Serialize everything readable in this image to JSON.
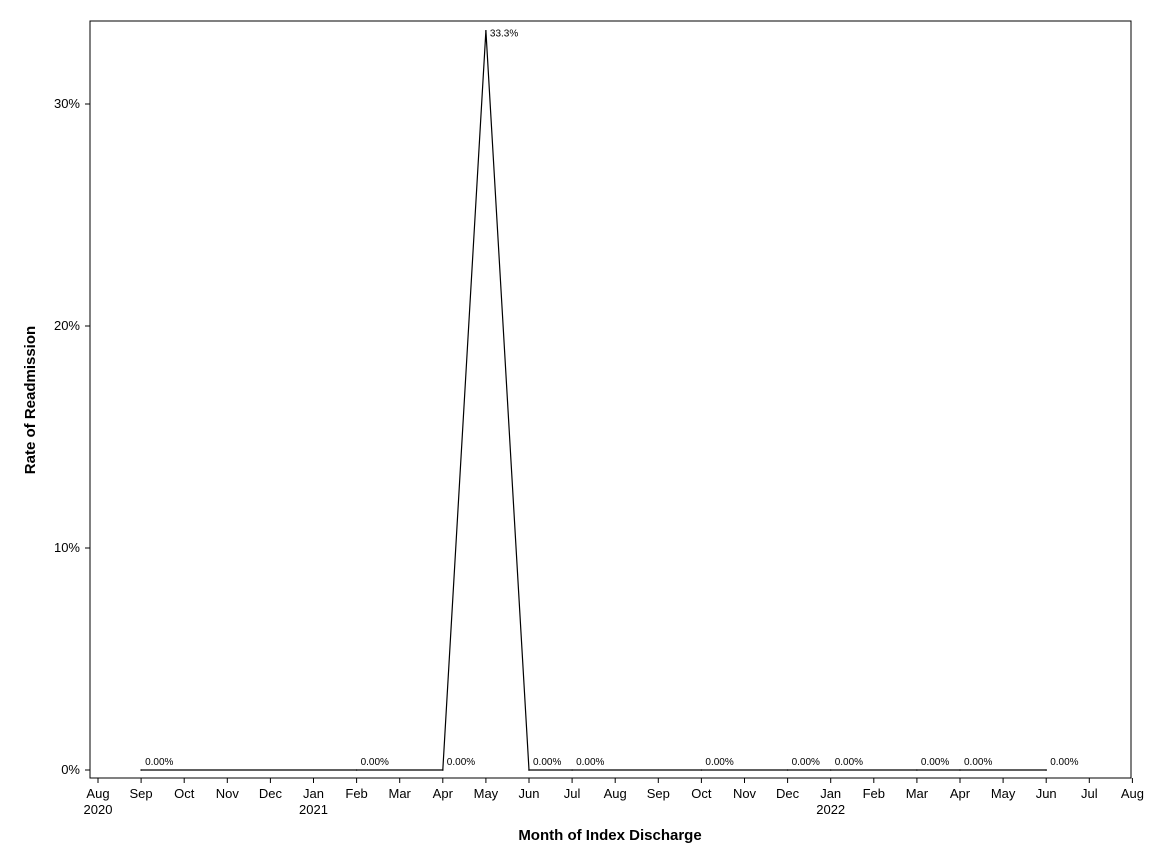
{
  "chart_data": {
    "type": "line",
    "title": "",
    "xlabel": "Month of Index Discharge",
    "ylabel": "Rate of Readmission",
    "ylim": [
      0,
      0.333
    ],
    "y_ticks": [
      {
        "value": 0,
        "label": "0%"
      },
      {
        "value": 0.1,
        "label": "10%"
      },
      {
        "value": 0.2,
        "label": "20%"
      },
      {
        "value": 0.3,
        "label": "30%"
      }
    ],
    "x_axis_months": [
      {
        "date": "2020-08",
        "label": "Aug",
        "year": "2020"
      },
      {
        "date": "2020-09",
        "label": "Sep",
        "year": ""
      },
      {
        "date": "2020-10",
        "label": "Oct",
        "year": ""
      },
      {
        "date": "2020-11",
        "label": "Nov",
        "year": ""
      },
      {
        "date": "2020-12",
        "label": "Dec",
        "year": ""
      },
      {
        "date": "2021-01",
        "label": "Jan",
        "year": "2021"
      },
      {
        "date": "2021-02",
        "label": "Feb",
        "year": ""
      },
      {
        "date": "2021-03",
        "label": "Mar",
        "year": ""
      },
      {
        "date": "2021-04",
        "label": "Apr",
        "year": ""
      },
      {
        "date": "2021-05",
        "label": "May",
        "year": ""
      },
      {
        "date": "2021-06",
        "label": "Jun",
        "year": ""
      },
      {
        "date": "2021-07",
        "label": "Jul",
        "year": ""
      },
      {
        "date": "2021-08",
        "label": "Aug",
        "year": ""
      },
      {
        "date": "2021-09",
        "label": "Sep",
        "year": ""
      },
      {
        "date": "2021-10",
        "label": "Oct",
        "year": ""
      },
      {
        "date": "2021-11",
        "label": "Nov",
        "year": ""
      },
      {
        "date": "2021-12",
        "label": "Dec",
        "year": ""
      },
      {
        "date": "2022-01",
        "label": "Jan",
        "year": "2022"
      },
      {
        "date": "2022-02",
        "label": "Feb",
        "year": ""
      },
      {
        "date": "2022-03",
        "label": "Mar",
        "year": ""
      },
      {
        "date": "2022-04",
        "label": "Apr",
        "year": ""
      },
      {
        "date": "2022-05",
        "label": "May",
        "year": ""
      },
      {
        "date": "2022-06",
        "label": "Jun",
        "year": ""
      },
      {
        "date": "2022-07",
        "label": "Jul",
        "year": ""
      },
      {
        "date": "2022-08",
        "label": "Aug",
        "year": ""
      }
    ],
    "series": [
      {
        "points": [
          {
            "date": "2020-09",
            "value": 0,
            "label": "0.00%"
          },
          {
            "date": "2021-02",
            "value": 0,
            "label": "0.00%"
          },
          {
            "date": "2021-04",
            "value": 0,
            "label": "0.00%"
          },
          {
            "date": "2021-05",
            "value": 0.333,
            "label": "33.3%"
          },
          {
            "date": "2021-06",
            "value": 0,
            "label": "0.00%"
          },
          {
            "date": "2021-07",
            "value": 0,
            "label": "0.00%"
          },
          {
            "date": "2021-10",
            "value": 0,
            "label": "0.00%"
          },
          {
            "date": "2021-12",
            "value": 0,
            "label": "0.00%"
          },
          {
            "date": "2022-01",
            "value": 0,
            "label": "0.00%"
          },
          {
            "date": "2022-03",
            "value": 0,
            "label": "0.00%"
          },
          {
            "date": "2022-04",
            "value": 0,
            "label": "0.00%"
          },
          {
            "date": "2022-06",
            "value": 0,
            "label": "0.00%"
          }
        ]
      }
    ],
    "line_color": "#000000",
    "grid": false,
    "legend": "none"
  }
}
